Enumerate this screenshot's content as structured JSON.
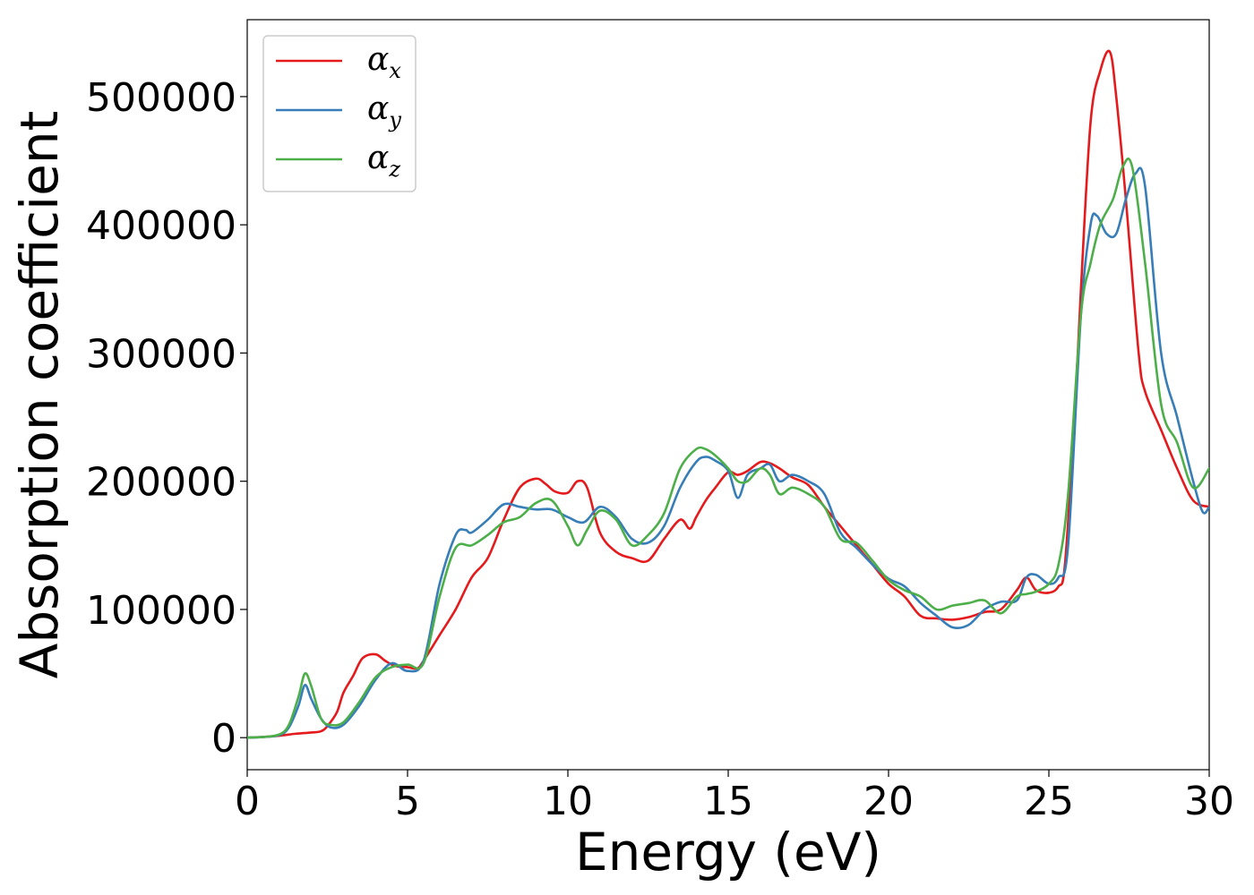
{
  "chart_data": {
    "type": "line",
    "title": "",
    "xlabel": "Energy (eV)",
    "ylabel": "Absorption coefficient",
    "xlim": [
      0,
      30
    ],
    "ylim": [
      -25000,
      560000
    ],
    "xticks": [
      "0",
      "5",
      "10",
      "15",
      "20",
      "25",
      "30"
    ],
    "yticks": [
      "0",
      "100000",
      "200000",
      "300000",
      "400000",
      "500000"
    ],
    "grid": false,
    "legend_position": "top-left",
    "series": [
      {
        "name": "αx",
        "legend_base": "α",
        "legend_sub": "x",
        "color": "#e41a1c",
        "x": [
          0,
          0.5,
          1,
          1.5,
          2,
          2.3,
          2.5,
          2.8,
          3,
          3.3,
          3.6,
          4,
          4.3,
          4.6,
          5,
          5.3,
          5.5,
          6,
          6.5,
          7,
          7.5,
          8,
          8.5,
          9,
          9.3,
          9.6,
          10,
          10.3,
          10.6,
          11,
          11.5,
          12,
          12.5,
          13,
          13.5,
          13.8,
          14,
          14.3,
          14.6,
          15,
          15.3,
          15.6,
          16,
          16.3,
          16.6,
          17,
          17.5,
          18,
          18.5,
          19,
          19.5,
          20,
          20.5,
          21,
          21.5,
          22,
          22.5,
          23,
          23.5,
          24,
          24.3,
          24.6,
          25,
          25.3,
          25.5,
          25.8,
          26,
          26.3,
          26.6,
          26.9,
          27.1,
          27.4,
          27.8,
          28,
          28.5,
          29,
          29.5,
          30
        ],
        "y": [
          0,
          500,
          1500,
          3000,
          4000,
          5000,
          9000,
          20000,
          35000,
          48000,
          62000,
          65000,
          60000,
          56000,
          55000,
          54000,
          60000,
          80000,
          100000,
          125000,
          140000,
          170000,
          195000,
          202000,
          198000,
          192000,
          191000,
          200000,
          195000,
          160000,
          145000,
          140000,
          138000,
          155000,
          170000,
          163000,
          172000,
          185000,
          195000,
          207000,
          205000,
          208000,
          215000,
          214000,
          210000,
          203000,
          197000,
          180000,
          165000,
          150000,
          135000,
          120000,
          110000,
          95000,
          93000,
          92000,
          94000,
          98000,
          100000,
          115000,
          125000,
          115000,
          113000,
          118000,
          135000,
          250000,
          350000,
          480000,
          520000,
          535000,
          500000,
          420000,
          300000,
          270000,
          240000,
          210000,
          185000,
          180000
        ]
      },
      {
        "name": "αy",
        "legend_base": "α",
        "legend_sub": "y",
        "color": "#377eb8",
        "x": [
          0,
          0.5,
          1,
          1.3,
          1.6,
          1.8,
          2,
          2.3,
          2.6,
          3,
          3.5,
          4,
          4.5,
          5,
          5.5,
          6,
          6.5,
          6.8,
          7,
          7.5,
          8,
          8.5,
          9,
          9.5,
          10,
          10.5,
          11,
          11.5,
          12,
          12.5,
          13,
          13.5,
          14,
          14.3,
          14.6,
          15,
          15.3,
          15.6,
          16,
          16.3,
          16.6,
          17,
          17.5,
          18,
          18.5,
          19,
          19.5,
          20,
          20.5,
          21,
          21.5,
          22,
          22.5,
          23,
          23.5,
          24,
          24.3,
          24.6,
          25,
          25.3,
          25.6,
          26,
          26.3,
          26.5,
          26.8,
          27.1,
          27.4,
          27.7,
          28,
          28.5,
          29,
          29.5,
          29.8,
          30
        ],
        "y": [
          0,
          500,
          2000,
          8000,
          25000,
          41000,
          30000,
          15000,
          8000,
          10000,
          25000,
          45000,
          58000,
          52000,
          60000,
          120000,
          158000,
          162000,
          160000,
          170000,
          182000,
          180000,
          178000,
          178000,
          172000,
          168000,
          180000,
          172000,
          155000,
          152000,
          165000,
          195000,
          215000,
          219000,
          216000,
          208000,
          187000,
          205000,
          210000,
          213000,
          200000,
          205000,
          200000,
          190000,
          160000,
          148000,
          135000,
          124000,
          118000,
          105000,
          95000,
          86000,
          88000,
          100000,
          106000,
          107000,
          125000,
          127000,
          120000,
          125000,
          150000,
          330000,
          400000,
          407000,
          393000,
          393000,
          420000,
          440000,
          430000,
          300000,
          250000,
          200000,
          176000,
          180000
        ]
      },
      {
        "name": "αz",
        "legend_base": "α",
        "legend_sub": "z",
        "color": "#4daf4a",
        "x": [
          0,
          0.5,
          1,
          1.3,
          1.6,
          1.8,
          2,
          2.3,
          2.6,
          3,
          3.5,
          4,
          4.5,
          5,
          5.5,
          6,
          6.5,
          7,
          7.5,
          8,
          8.5,
          9,
          9.5,
          10,
          10.3,
          10.6,
          11,
          11.5,
          12,
          12.5,
          13,
          13.5,
          14,
          14.3,
          14.6,
          15,
          15.3,
          15.6,
          16,
          16.3,
          16.6,
          17,
          17.5,
          18,
          18.5,
          19,
          19.5,
          20,
          20.5,
          21,
          21.5,
          22,
          22.5,
          23,
          23.5,
          24,
          24.3,
          24.6,
          25,
          25.3,
          25.6,
          26,
          26.3,
          26.6,
          27,
          27.3,
          27.6,
          28,
          28.5,
          29,
          29.5,
          30
        ],
        "y": [
          0,
          500,
          2500,
          10000,
          32000,
          50000,
          40000,
          15000,
          10000,
          12000,
          28000,
          47000,
          55000,
          57000,
          58000,
          110000,
          148000,
          150000,
          158000,
          168000,
          172000,
          183000,
          185000,
          165000,
          150000,
          162000,
          177000,
          170000,
          150000,
          158000,
          175000,
          210000,
          225000,
          225000,
          220000,
          210000,
          200000,
          200000,
          210000,
          205000,
          190000,
          195000,
          190000,
          180000,
          155000,
          152000,
          138000,
          123000,
          115000,
          110000,
          100000,
          103000,
          105000,
          107000,
          97000,
          110000,
          112000,
          114000,
          120000,
          135000,
          190000,
          330000,
          370000,
          400000,
          420000,
          445000,
          445000,
          370000,
          260000,
          230000,
          195000,
          210000
        ]
      }
    ]
  }
}
